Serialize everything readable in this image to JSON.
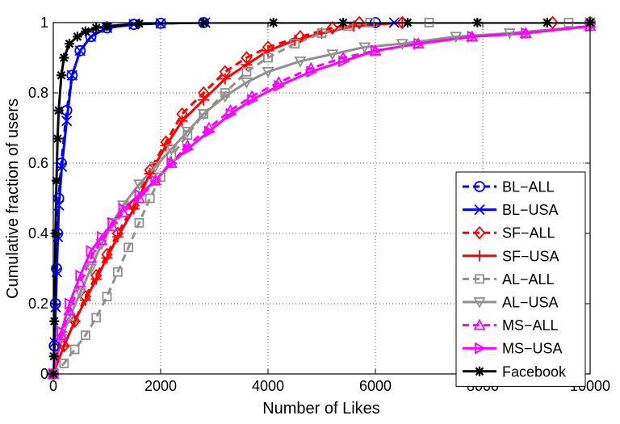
{
  "chart_data": {
    "type": "line",
    "title": "",
    "xlabel": "Number of Likes",
    "ylabel": "Cumulative fraction of users",
    "xlim": [
      0,
      10000
    ],
    "ylim": [
      0,
      1
    ],
    "grid": true,
    "legend_position": "bottom-right",
    "xticks": [
      0,
      2000,
      4000,
      6000,
      8000,
      10000
    ],
    "xtick_labels": [
      "0",
      "2000",
      "4000",
      "6000",
      "8000",
      "10000"
    ],
    "yticks": [
      0,
      0.2,
      0.4,
      0.6,
      0.8,
      1
    ],
    "ytick_labels": [
      "0",
      "0.2",
      "0.4",
      "0.6",
      "0.8",
      "1"
    ],
    "series": [
      {
        "name": "BL−ALL",
        "color": "#0000ff",
        "dash": "dashed",
        "marker": "circle",
        "x": [
          0,
          20,
          40,
          60,
          80,
          100,
          150,
          250,
          350,
          500,
          700,
          1000,
          1500,
          2000,
          2800,
          6000,
          10000
        ],
        "y": [
          0,
          0.08,
          0.2,
          0.3,
          0.4,
          0.5,
          0.6,
          0.75,
          0.85,
          0.92,
          0.96,
          0.985,
          0.995,
          0.998,
          1,
          1,
          1
        ]
      },
      {
        "name": "BL−USA",
        "color": "#0000ff",
        "dash": "solid",
        "marker": "x",
        "x": [
          0,
          25,
          45,
          65,
          85,
          105,
          160,
          250,
          350,
          500,
          700,
          1000,
          1500,
          2000,
          2830,
          6350,
          10000
        ],
        "y": [
          0,
          0.09,
          0.19,
          0.29,
          0.39,
          0.48,
          0.59,
          0.72,
          0.85,
          0.92,
          0.96,
          0.985,
          0.995,
          0.998,
          1,
          1,
          1
        ]
      },
      {
        "name": "SF−ALL",
        "color": "#ff0000",
        "dash": "dashed",
        "marker": "diamond",
        "x": [
          0,
          200,
          400,
          600,
          800,
          1000,
          1200,
          1500,
          1800,
          2100,
          2400,
          2800,
          3200,
          3600,
          4000,
          4600,
          5200,
          5700,
          6500,
          9300,
          10000
        ],
        "y": [
          0,
          0.08,
          0.15,
          0.22,
          0.28,
          0.34,
          0.4,
          0.48,
          0.58,
          0.66,
          0.74,
          0.8,
          0.86,
          0.9,
          0.93,
          0.96,
          0.985,
          1,
          1,
          1,
          1
        ]
      },
      {
        "name": "SF−USA",
        "color": "#ff0000",
        "dash": "solid",
        "marker": "plus",
        "x": [
          0,
          200,
          400,
          600,
          800,
          1000,
          1200,
          1500,
          1800,
          2100,
          2400,
          2800,
          3200,
          3600,
          4000,
          4500,
          5000,
          5600,
          6500,
          10000
        ],
        "y": [
          0,
          0.08,
          0.15,
          0.21,
          0.27,
          0.33,
          0.39,
          0.47,
          0.57,
          0.65,
          0.72,
          0.78,
          0.84,
          0.88,
          0.92,
          0.95,
          0.97,
          0.99,
          1,
          1
        ]
      },
      {
        "name": "AL−ALL",
        "color": "#909090",
        "dash": "dashed",
        "marker": "square",
        "x": [
          0,
          200,
          400,
          600,
          800,
          1000,
          1200,
          1400,
          1600,
          1800,
          2000,
          2200,
          2500,
          2800,
          3200,
          3600,
          4000,
          4500,
          5000,
          5500,
          5900,
          7000,
          9600,
          10000
        ],
        "y": [
          0,
          0.03,
          0.07,
          0.11,
          0.16,
          0.22,
          0.29,
          0.36,
          0.43,
          0.5,
          0.56,
          0.62,
          0.68,
          0.74,
          0.8,
          0.86,
          0.9,
          0.94,
          0.97,
          0.99,
          1,
          1,
          1,
          1
        ]
      },
      {
        "name": "AL−USA",
        "color": "#909090",
        "dash": "solid",
        "marker": "triangle-down",
        "x": [
          0,
          150,
          300,
          500,
          700,
          900,
          1100,
          1300,
          1600,
          1900,
          2200,
          2500,
          2800,
          3200,
          3600,
          4000,
          4600,
          5200,
          5800,
          6500,
          7500,
          8500,
          10000
        ],
        "y": [
          0,
          0.1,
          0.16,
          0.23,
          0.3,
          0.37,
          0.43,
          0.48,
          0.54,
          0.59,
          0.64,
          0.69,
          0.74,
          0.79,
          0.83,
          0.86,
          0.89,
          0.91,
          0.93,
          0.94,
          0.96,
          0.97,
          0.99
        ]
      },
      {
        "name": "MS−ALL",
        "color": "#ff00ff",
        "dash": "dashed",
        "marker": "triangle-up",
        "x": [
          0,
          150,
          300,
          500,
          700,
          900,
          1100,
          1300,
          1600,
          1900,
          2200,
          2500,
          2900,
          3300,
          3700,
          4200,
          4800,
          5400,
          6000,
          6800,
          7800,
          8800,
          10000
        ],
        "y": [
          0,
          0.11,
          0.18,
          0.26,
          0.33,
          0.38,
          0.42,
          0.46,
          0.5,
          0.55,
          0.6,
          0.65,
          0.7,
          0.75,
          0.79,
          0.83,
          0.87,
          0.9,
          0.92,
          0.94,
          0.96,
          0.97,
          0.99
        ]
      },
      {
        "name": "MS−USA",
        "color": "#ff00ff",
        "dash": "solid",
        "marker": "triangle-right",
        "x": [
          0,
          150,
          300,
          500,
          700,
          900,
          1100,
          1300,
          1600,
          1900,
          2200,
          2500,
          2900,
          3300,
          3700,
          4200,
          4800,
          5400,
          6000,
          6800,
          7800,
          8800,
          10000
        ],
        "y": [
          0,
          0.12,
          0.2,
          0.28,
          0.35,
          0.39,
          0.43,
          0.47,
          0.51,
          0.55,
          0.6,
          0.64,
          0.69,
          0.74,
          0.78,
          0.82,
          0.86,
          0.89,
          0.92,
          0.94,
          0.96,
          0.97,
          0.99
        ]
      },
      {
        "name": "Facebook",
        "color": "#000000",
        "dash": "solid",
        "marker": "asterisk",
        "x": [
          0,
          10,
          20,
          40,
          60,
          80,
          100,
          150,
          200,
          300,
          450,
          600,
          800,
          1000,
          1600,
          2800,
          4100,
          5400,
          6600,
          7900,
          9200,
          10000
        ],
        "y": [
          0,
          0.05,
          0.15,
          0.4,
          0.55,
          0.67,
          0.75,
          0.85,
          0.9,
          0.94,
          0.96,
          0.975,
          0.985,
          0.99,
          0.997,
          1,
          1,
          1,
          1,
          1,
          1,
          1
        ]
      }
    ]
  }
}
